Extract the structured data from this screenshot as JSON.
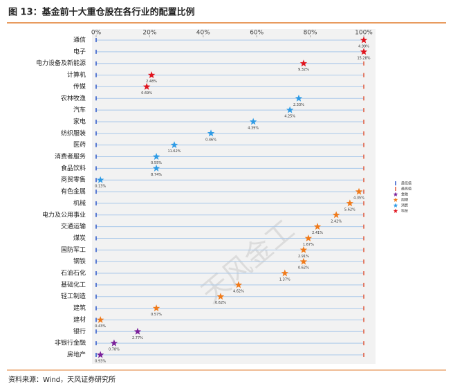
{
  "chart_data": {
    "type": "scatter",
    "title": "图 13：基金前十大重仓股在各行业的配置比例",
    "source": "资料来源：Wind，天风证券研究所",
    "watermark": "天风金工",
    "categories": [
      "通信",
      "电子",
      "电力设备及新能源",
      "计算机",
      "传媒",
      "农林牧渔",
      "汽车",
      "家电",
      "纺织服装",
      "医药",
      "消费者服务",
      "食品饮料",
      "商贸零售",
      "有色金属",
      "机械",
      "电力及公用事业",
      "交通运输",
      "煤炭",
      "国防军工",
      "钢铁",
      "石油石化",
      "基础化工",
      "轻工制造",
      "建筑",
      "建材",
      "银行",
      "非银行金融",
      "房地产"
    ],
    "xlim": [
      0,
      100
    ],
    "xticks": [
      {
        "value": 0,
        "label": "0%"
      },
      {
        "value": 20,
        "label": "20%"
      },
      {
        "value": 40,
        "label": "40%"
      },
      {
        "value": 60,
        "label": "60%"
      },
      {
        "value": 80,
        "label": "80%"
      },
      {
        "value": 100,
        "label": "100%"
      }
    ],
    "range_marks": [
      {
        "name": "最低值",
        "color": "#2a55c9"
      },
      {
        "name": "最高值",
        "color": "#e0583a"
      }
    ],
    "series": [
      {
        "name": "金融",
        "color": "#7a1f9a",
        "values": [
          null,
          null,
          null,
          null,
          null,
          null,
          null,
          null,
          null,
          null,
          null,
          null,
          null,
          null,
          null,
          null,
          null,
          null,
          null,
          null,
          null,
          null,
          null,
          null,
          null,
          15.5,
          6.7,
          1.6
        ],
        "labels": [
          null,
          null,
          null,
          null,
          null,
          null,
          null,
          null,
          null,
          null,
          null,
          null,
          null,
          null,
          null,
          null,
          null,
          null,
          null,
          null,
          null,
          null,
          null,
          null,
          null,
          "2.77%",
          "0.78%",
          "0.93%"
        ]
      },
      {
        "name": "周期",
        "color": "#f07a1a",
        "values": [
          null,
          null,
          null,
          null,
          null,
          null,
          null,
          null,
          null,
          null,
          null,
          null,
          null,
          98.2,
          94.8,
          89.7,
          82.7,
          79.3,
          77.5,
          77.5,
          70.5,
          53.2,
          46.5,
          22.5,
          1.6,
          null,
          null,
          null
        ],
        "labels": [
          null,
          null,
          null,
          null,
          null,
          null,
          null,
          null,
          null,
          null,
          null,
          null,
          null,
          "4.35%",
          "5.62%",
          "2.42%",
          "2.41%",
          "1.67%",
          "2.91%",
          "0.62%",
          "1.37%",
          "4.62%",
          "0.62%",
          "0.57%",
          "0.43%",
          null,
          null,
          null
        ]
      },
      {
        "name": "消费",
        "color": "#2e9be6",
        "values": [
          null,
          null,
          null,
          null,
          null,
          75.7,
          72.4,
          58.7,
          42.9,
          29.2,
          22.5,
          22.5,
          1.6,
          null,
          null,
          null,
          null,
          null,
          null,
          null,
          null,
          null,
          null,
          null,
          null,
          null,
          null,
          null
        ],
        "labels": [
          null,
          null,
          null,
          null,
          null,
          "2.33%",
          "4.25%",
          "4.39%",
          "0.46%",
          "11.62%",
          "0.55%",
          "8.74%",
          "0.13%",
          null,
          null,
          null,
          null,
          null,
          null,
          null,
          null,
          null,
          null,
          null,
          null,
          null,
          null,
          null
        ]
      },
      {
        "name": "科技",
        "color": "#e0141e",
        "values": [
          100,
          100,
          77.5,
          20.7,
          18.9,
          null,
          null,
          null,
          null,
          null,
          null,
          null,
          null,
          null,
          null,
          null,
          null,
          null,
          null,
          null,
          null,
          null,
          null,
          null,
          null,
          null,
          null,
          null
        ],
        "labels": [
          "4.99%",
          "15.28%",
          "9.32%",
          "2.48%",
          "0.69%",
          null,
          null,
          null,
          null,
          null,
          null,
          null,
          null,
          null,
          null,
          null,
          null,
          null,
          null,
          null,
          null,
          null,
          null,
          null,
          null,
          null,
          null,
          null
        ]
      }
    ]
  }
}
